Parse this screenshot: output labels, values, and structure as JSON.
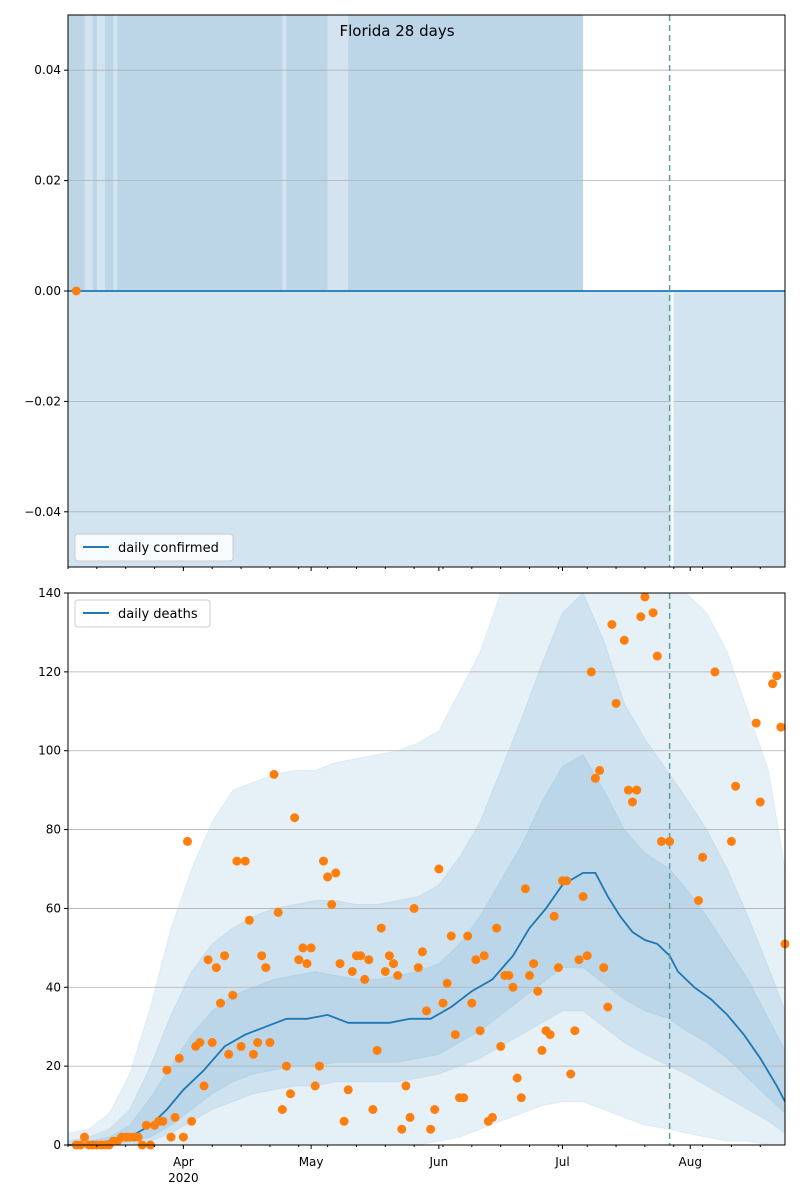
{
  "colors": {
    "band": "#1f77b4",
    "line": "#1f77b4",
    "points": "#ff7f0e",
    "grid": "#b0b0b0",
    "vline": "#5f9ea0"
  },
  "chart_data": [
    {
      "type": "area",
      "title": "Florida 28 days",
      "legend": {
        "label": "daily confirmed",
        "placement": "bottom-left"
      },
      "ylim": [
        -0.05,
        0.05
      ],
      "yticks": [
        -0.04,
        -0.02,
        0.0,
        0.02,
        0.04
      ],
      "ytick_labels": [
        "−0.04",
        "−0.02",
        "0.00",
        "0.02",
        "0.04"
      ],
      "grid": true,
      "x_range_days": [
        0,
        174
      ],
      "vline_day": 146,
      "series": [
        {
          "name": "daily confirmed",
          "kind": "line",
          "value": 0
        }
      ],
      "observed_points": [
        {
          "day": 2,
          "value": 0
        }
      ],
      "bands": {
        "lower_full_until_day": 174,
        "upper_until_day": 125,
        "upper_light_segments": [
          [
            4,
            6
          ],
          [
            7,
            9
          ],
          [
            11,
            12
          ],
          [
            52,
            53
          ],
          [
            63,
            68
          ]
        ]
      }
    },
    {
      "type": "line",
      "legend": {
        "label": "daily deaths",
        "placement": "top-left"
      },
      "ylim": [
        0,
        140
      ],
      "yticks": [
        0,
        20,
        40,
        60,
        80,
        100,
        120,
        140
      ],
      "ytick_labels": [
        "0",
        "20",
        "40",
        "60",
        "80",
        "100",
        "120",
        "140"
      ],
      "grid": true,
      "x_range_days": [
        0,
        174
      ],
      "xticks": [
        {
          "day": 28,
          "label": "Apr",
          "sublabel": "2020"
        },
        {
          "day": 59,
          "label": "May",
          "sublabel": ""
        },
        {
          "day": 90,
          "label": "Jun",
          "sublabel": ""
        },
        {
          "day": 120,
          "label": "Jul",
          "sublabel": ""
        },
        {
          "day": 151,
          "label": "Aug",
          "sublabel": ""
        }
      ],
      "vline_day": 146,
      "median": [
        [
          0,
          0
        ],
        [
          5,
          0
        ],
        [
          10,
          1
        ],
        [
          15,
          2
        ],
        [
          20,
          5
        ],
        [
          24,
          9
        ],
        [
          28,
          14
        ],
        [
          33,
          19
        ],
        [
          38,
          25
        ],
        [
          43,
          28
        ],
        [
          48,
          30
        ],
        [
          53,
          32
        ],
        [
          58,
          32
        ],
        [
          63,
          33
        ],
        [
          68,
          31
        ],
        [
          73,
          31
        ],
        [
          78,
          31
        ],
        [
          83,
          32
        ],
        [
          88,
          32
        ],
        [
          93,
          35
        ],
        [
          98,
          39
        ],
        [
          103,
          42
        ],
        [
          108,
          48
        ],
        [
          112,
          55
        ],
        [
          116,
          60
        ],
        [
          120,
          66
        ],
        [
          125,
          69
        ],
        [
          128,
          69
        ],
        [
          131,
          63
        ],
        [
          134,
          58
        ],
        [
          137,
          54
        ],
        [
          140,
          52
        ],
        [
          143,
          51
        ],
        [
          146,
          48
        ],
        [
          148,
          44
        ],
        [
          152,
          40
        ],
        [
          156,
          37
        ],
        [
          160,
          33
        ],
        [
          164,
          28
        ],
        [
          168,
          22
        ],
        [
          172,
          15
        ],
        [
          174,
          11
        ]
      ],
      "band_90": [
        [
          0,
          0,
          3
        ],
        [
          5,
          0,
          4
        ],
        [
          10,
          0,
          8
        ],
        [
          15,
          0,
          18
        ],
        [
          20,
          0,
          35
        ],
        [
          25,
          0,
          55
        ],
        [
          30,
          0,
          70
        ],
        [
          35,
          0,
          82
        ],
        [
          40,
          0,
          90
        ],
        [
          45,
          0,
          92
        ],
        [
          50,
          0,
          94
        ],
        [
          55,
          0,
          95
        ],
        [
          60,
          0,
          95
        ],
        [
          65,
          0,
          97
        ],
        [
          70,
          0,
          98
        ],
        [
          75,
          0,
          99
        ],
        [
          80,
          0,
          100
        ],
        [
          85,
          0,
          102
        ],
        [
          90,
          1,
          105
        ],
        [
          95,
          2,
          115
        ],
        [
          100,
          4,
          125
        ],
        [
          105,
          6,
          140
        ],
        [
          110,
          8,
          140
        ],
        [
          115,
          10,
          140
        ],
        [
          120,
          11,
          140
        ],
        [
          125,
          11,
          140
        ],
        [
          130,
          9,
          140
        ],
        [
          135,
          7,
          140
        ],
        [
          140,
          5,
          140
        ],
        [
          146,
          4,
          140
        ],
        [
          150,
          3,
          140
        ],
        [
          155,
          2,
          135
        ],
        [
          160,
          1,
          125
        ],
        [
          165,
          1,
          110
        ],
        [
          170,
          0,
          95
        ],
        [
          174,
          0,
          70
        ]
      ],
      "band_50": [
        [
          0,
          0,
          1
        ],
        [
          5,
          0,
          2
        ],
        [
          10,
          0,
          4
        ],
        [
          15,
          0,
          9
        ],
        [
          20,
          1,
          20
        ],
        [
          25,
          3,
          33
        ],
        [
          30,
          6,
          44
        ],
        [
          35,
          9,
          51
        ],
        [
          40,
          11,
          55
        ],
        [
          45,
          13,
          58
        ],
        [
          50,
          14,
          60
        ],
        [
          55,
          15,
          61
        ],
        [
          60,
          15,
          62
        ],
        [
          65,
          16,
          62
        ],
        [
          70,
          16,
          61
        ],
        [
          75,
          16,
          61
        ],
        [
          80,
          16,
          62
        ],
        [
          85,
          17,
          63
        ],
        [
          90,
          18,
          66
        ],
        [
          95,
          20,
          73
        ],
        [
          100,
          22,
          82
        ],
        [
          105,
          25,
          95
        ],
        [
          110,
          28,
          108
        ],
        [
          115,
          31,
          122
        ],
        [
          120,
          34,
          135
        ],
        [
          125,
          34,
          140
        ],
        [
          130,
          30,
          128
        ],
        [
          135,
          26,
          112
        ],
        [
          140,
          23,
          103
        ],
        [
          146,
          20,
          94
        ],
        [
          150,
          18,
          88
        ],
        [
          155,
          15,
          80
        ],
        [
          160,
          12,
          70
        ],
        [
          165,
          9,
          58
        ],
        [
          170,
          6,
          45
        ],
        [
          174,
          3,
          34
        ]
      ],
      "band_25": [
        [
          0,
          0,
          0
        ],
        [
          5,
          0,
          1
        ],
        [
          10,
          0,
          2
        ],
        [
          15,
          1,
          5
        ],
        [
          20,
          2,
          12
        ],
        [
          25,
          5,
          20
        ],
        [
          30,
          9,
          28
        ],
        [
          35,
          13,
          34
        ],
        [
          40,
          16,
          38
        ],
        [
          45,
          18,
          40
        ],
        [
          50,
          19,
          42
        ],
        [
          55,
          20,
          43
        ],
        [
          60,
          20,
          44
        ],
        [
          65,
          21,
          43
        ],
        [
          70,
          21,
          42
        ],
        [
          75,
          21,
          42
        ],
        [
          80,
          21,
          43
        ],
        [
          85,
          22,
          44
        ],
        [
          90,
          23,
          46
        ],
        [
          95,
          26,
          51
        ],
        [
          100,
          29,
          58
        ],
        [
          105,
          33,
          67
        ],
        [
          110,
          37,
          76
        ],
        [
          115,
          41,
          87
        ],
        [
          120,
          45,
          96
        ],
        [
          125,
          45,
          99
        ],
        [
          130,
          41,
          90
        ],
        [
          135,
          37,
          80
        ],
        [
          140,
          34,
          74
        ],
        [
          146,
          32,
          70
        ],
        [
          150,
          29,
          65
        ],
        [
          155,
          26,
          58
        ],
        [
          160,
          22,
          50
        ],
        [
          165,
          17,
          42
        ],
        [
          170,
          12,
          32
        ],
        [
          174,
          8,
          24
        ]
      ],
      "observed": [
        [
          2,
          0
        ],
        [
          3,
          0
        ],
        [
          4,
          2
        ],
        [
          5,
          0
        ],
        [
          6,
          0
        ],
        [
          7,
          0
        ],
        [
          8,
          0
        ],
        [
          9,
          0
        ],
        [
          10,
          0
        ],
        [
          11,
          1
        ],
        [
          12,
          1
        ],
        [
          13,
          2
        ],
        [
          14,
          2
        ],
        [
          15,
          2
        ],
        [
          16,
          2
        ],
        [
          17,
          2
        ],
        [
          18,
          0
        ],
        [
          19,
          5
        ],
        [
          20,
          0
        ],
        [
          21,
          5
        ],
        [
          22,
          6
        ],
        [
          23,
          6
        ],
        [
          24,
          19
        ],
        [
          25,
          2
        ],
        [
          26,
          7
        ],
        [
          27,
          22
        ],
        [
          28,
          2
        ],
        [
          29,
          77
        ],
        [
          30,
          6
        ],
        [
          31,
          25
        ],
        [
          32,
          26
        ],
        [
          33,
          15
        ],
        [
          34,
          47
        ],
        [
          35,
          26
        ],
        [
          36,
          45
        ],
        [
          37,
          36
        ],
        [
          38,
          48
        ],
        [
          39,
          23
        ],
        [
          40,
          38
        ],
        [
          41,
          72
        ],
        [
          42,
          25
        ],
        [
          43,
          72
        ],
        [
          44,
          57
        ],
        [
          45,
          23
        ],
        [
          46,
          26
        ],
        [
          47,
          48
        ],
        [
          48,
          45
        ],
        [
          49,
          26
        ],
        [
          50,
          94
        ],
        [
          51,
          59
        ],
        [
          52,
          9
        ],
        [
          53,
          20
        ],
        [
          54,
          13
        ],
        [
          55,
          83
        ],
        [
          56,
          47
        ],
        [
          57,
          50
        ],
        [
          58,
          46
        ],
        [
          59,
          50
        ],
        [
          60,
          15
        ],
        [
          61,
          20
        ],
        [
          62,
          72
        ],
        [
          63,
          68
        ],
        [
          64,
          61
        ],
        [
          65,
          69
        ],
        [
          66,
          46
        ],
        [
          67,
          6
        ],
        [
          68,
          14
        ],
        [
          69,
          44
        ],
        [
          70,
          48
        ],
        [
          71,
          48
        ],
        [
          72,
          42
        ],
        [
          73,
          47
        ],
        [
          74,
          9
        ],
        [
          75,
          24
        ],
        [
          76,
          55
        ],
        [
          77,
          44
        ],
        [
          78,
          48
        ],
        [
          79,
          46
        ],
        [
          80,
          43
        ],
        [
          81,
          4
        ],
        [
          82,
          15
        ],
        [
          83,
          7
        ],
        [
          84,
          60
        ],
        [
          85,
          45
        ],
        [
          86,
          49
        ],
        [
          87,
          34
        ],
        [
          88,
          4
        ],
        [
          89,
          9
        ],
        [
          90,
          70
        ],
        [
          91,
          36
        ],
        [
          92,
          41
        ],
        [
          93,
          53
        ],
        [
          94,
          28
        ],
        [
          95,
          12
        ],
        [
          96,
          12
        ],
        [
          97,
          53
        ],
        [
          98,
          36
        ],
        [
          99,
          47
        ],
        [
          100,
          29
        ],
        [
          101,
          48
        ],
        [
          102,
          6
        ],
        [
          103,
          7
        ],
        [
          104,
          55
        ],
        [
          105,
          25
        ],
        [
          106,
          43
        ],
        [
          107,
          43
        ],
        [
          108,
          40
        ],
        [
          109,
          17
        ],
        [
          110,
          12
        ],
        [
          111,
          65
        ],
        [
          112,
          43
        ],
        [
          113,
          46
        ],
        [
          114,
          39
        ],
        [
          115,
          24
        ],
        [
          116,
          29
        ],
        [
          117,
          28
        ],
        [
          118,
          58
        ],
        [
          119,
          45
        ],
        [
          120,
          67
        ],
        [
          121,
          67
        ],
        [
          122,
          18
        ],
        [
          123,
          29
        ],
        [
          124,
          47
        ],
        [
          125,
          63
        ],
        [
          126,
          48
        ],
        [
          127,
          120
        ],
        [
          128,
          93
        ],
        [
          129,
          95
        ],
        [
          130,
          45
        ],
        [
          131,
          35
        ],
        [
          132,
          132
        ],
        [
          133,
          112
        ],
        [
          135,
          128
        ],
        [
          136,
          90
        ],
        [
          137,
          87
        ],
        [
          138,
          90
        ],
        [
          139,
          134
        ],
        [
          140,
          139
        ],
        [
          142,
          135
        ],
        [
          143,
          124
        ],
        [
          144,
          77
        ],
        [
          146,
          77
        ],
        [
          153,
          62
        ],
        [
          154,
          73
        ],
        [
          157,
          120
        ],
        [
          161,
          77
        ],
        [
          162,
          91
        ],
        [
          167,
          107
        ],
        [
          168,
          87
        ],
        [
          171,
          117
        ],
        [
          172,
          119
        ],
        [
          173,
          106
        ],
        [
          174,
          51
        ]
      ]
    }
  ]
}
